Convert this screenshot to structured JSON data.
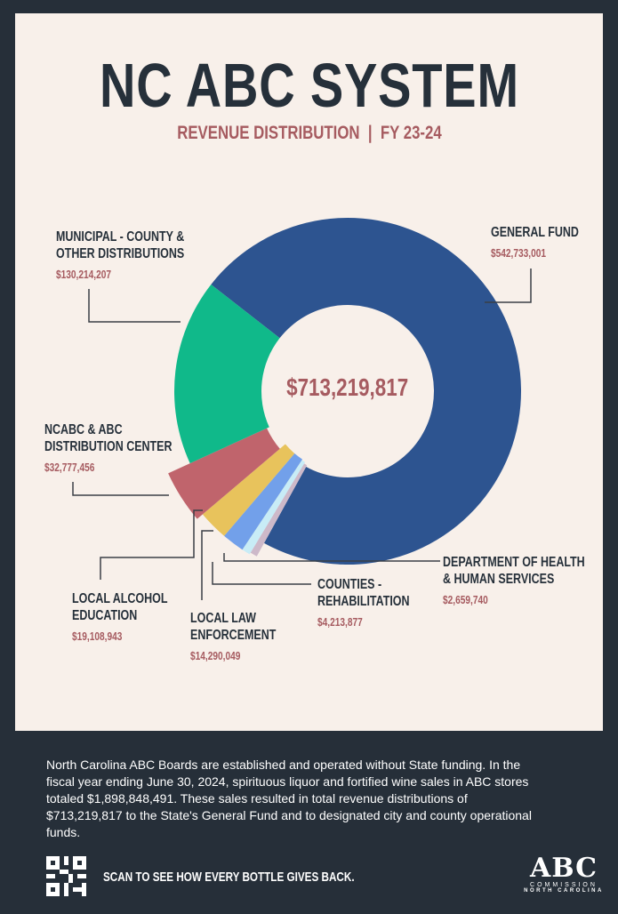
{
  "header": {
    "title": "NC ABC SYSTEM",
    "subtitle": "REVENUE DISTRIBUTION  |  FY 23-24"
  },
  "chart_data": {
    "type": "pie",
    "style": "donut",
    "center_label": "$713,219,817",
    "slices": [
      {
        "name": "GENERAL FUND",
        "value": 542733001,
        "amount_label": "$542,733,001",
        "color": "#2d5490"
      },
      {
        "name": "DEPARTMENT OF HEALTH & HUMAN SERVICES",
        "value": 2659740,
        "amount_label": "$2,659,740",
        "color": "#cdb9c9"
      },
      {
        "name": "COUNTIES - REHABILITATION",
        "value": 4213877,
        "amount_label": "$4,213,877",
        "color": "#c8ecf6"
      },
      {
        "name": "LOCAL LAW ENFORCEMENT",
        "value": 14290049,
        "amount_label": "$14,290,049",
        "color": "#72a0ea"
      },
      {
        "name": "LOCAL ALCOHOL EDUCATION",
        "value": 19108943,
        "amount_label": "$19,108,943",
        "color": "#e8c35c"
      },
      {
        "name": "NCABC & ABC DISTRIBUTION CENTER",
        "value": 32777456,
        "amount_label": "$32,777,456",
        "color": "#c0646c"
      },
      {
        "name": "MUNICIPAL - COUNTY & OTHER DISTRIBUTIONS",
        "value": 130214207,
        "amount_label": "$130,214,207",
        "color": "#10b98a"
      }
    ],
    "labels": {
      "general_fund": [
        "GENERAL FUND"
      ],
      "dhhs": [
        "DEPARTMENT OF HEALTH",
        "& HUMAN SERVICES"
      ],
      "counties": [
        "COUNTIES -",
        "REHABILITATION"
      ],
      "law": [
        "LOCAL LAW",
        "ENFORCEMENT"
      ],
      "alcohol": [
        "LOCAL ALCOHOL",
        "EDUCATION"
      ],
      "ncabc": [
        "NCABC & ABC",
        "DISTRIBUTION CENTER"
      ],
      "municipal": [
        "MUNICIPAL - COUNTY &",
        "OTHER DISTRIBUTIONS"
      ]
    }
  },
  "footer": {
    "description": "North Carolina ABC Boards are established and operated without State funding. In the fiscal year ending June 30, 2024, spirituous liquor and fortified wine sales in ABC stores totaled $1,898,848,491. These sales resulted in total revenue distributions of $713,219,817 to the State's General Fund and to designated city and county operational funds.",
    "cta": "SCAN TO SEE HOW EVERY BOTTLE GIVES BACK.",
    "logo": {
      "main": "ABC",
      "line1": "COMMISSION",
      "line2": "NORTH CAROLINA"
    },
    "qr_icon": "qr-code-icon"
  }
}
